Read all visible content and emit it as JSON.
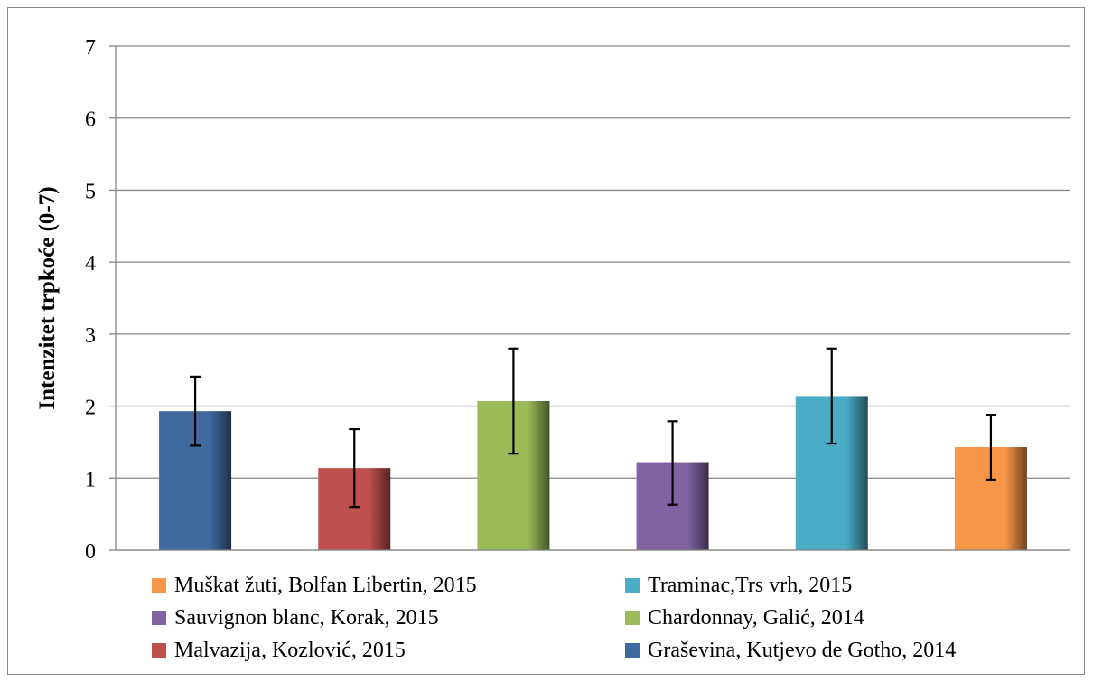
{
  "chart_data": {
    "type": "bar",
    "ylabel": "Intenzitet trpkoće (0-7)",
    "xlabel": "",
    "ylim": [
      0,
      7
    ],
    "yticks": [
      "0",
      "1",
      "2",
      "3",
      "4",
      "5",
      "6",
      "7"
    ],
    "grid": true,
    "legend_position": "bottom",
    "series": [
      {
        "name": "Graševina, Kutjevo de Gotho, 2014",
        "value": 1.93,
        "error": 0.48,
        "color": "#3f6aa0"
      },
      {
        "name": "Malvazija, Kozlović, 2015",
        "value": 1.14,
        "error": 0.54,
        "color": "#c0504d"
      },
      {
        "name": "Chardonnay, Galić, 2014",
        "value": 2.07,
        "error": 0.73,
        "color": "#9bbb59"
      },
      {
        "name": "Sauvignon blanc, Korak, 2015",
        "value": 1.21,
        "error": 0.58,
        "color": "#8064a2"
      },
      {
        "name": "Traminac,Trs vrh, 2015",
        "value": 2.14,
        "error": 0.66,
        "color": "#4bacc6"
      },
      {
        "name": "Muškat žuti, Bolfan Libertin, 2015",
        "value": 1.43,
        "error": 0.45,
        "color": "#f79646"
      }
    ],
    "legend_order": [
      5,
      4,
      3,
      2,
      1,
      0
    ]
  }
}
